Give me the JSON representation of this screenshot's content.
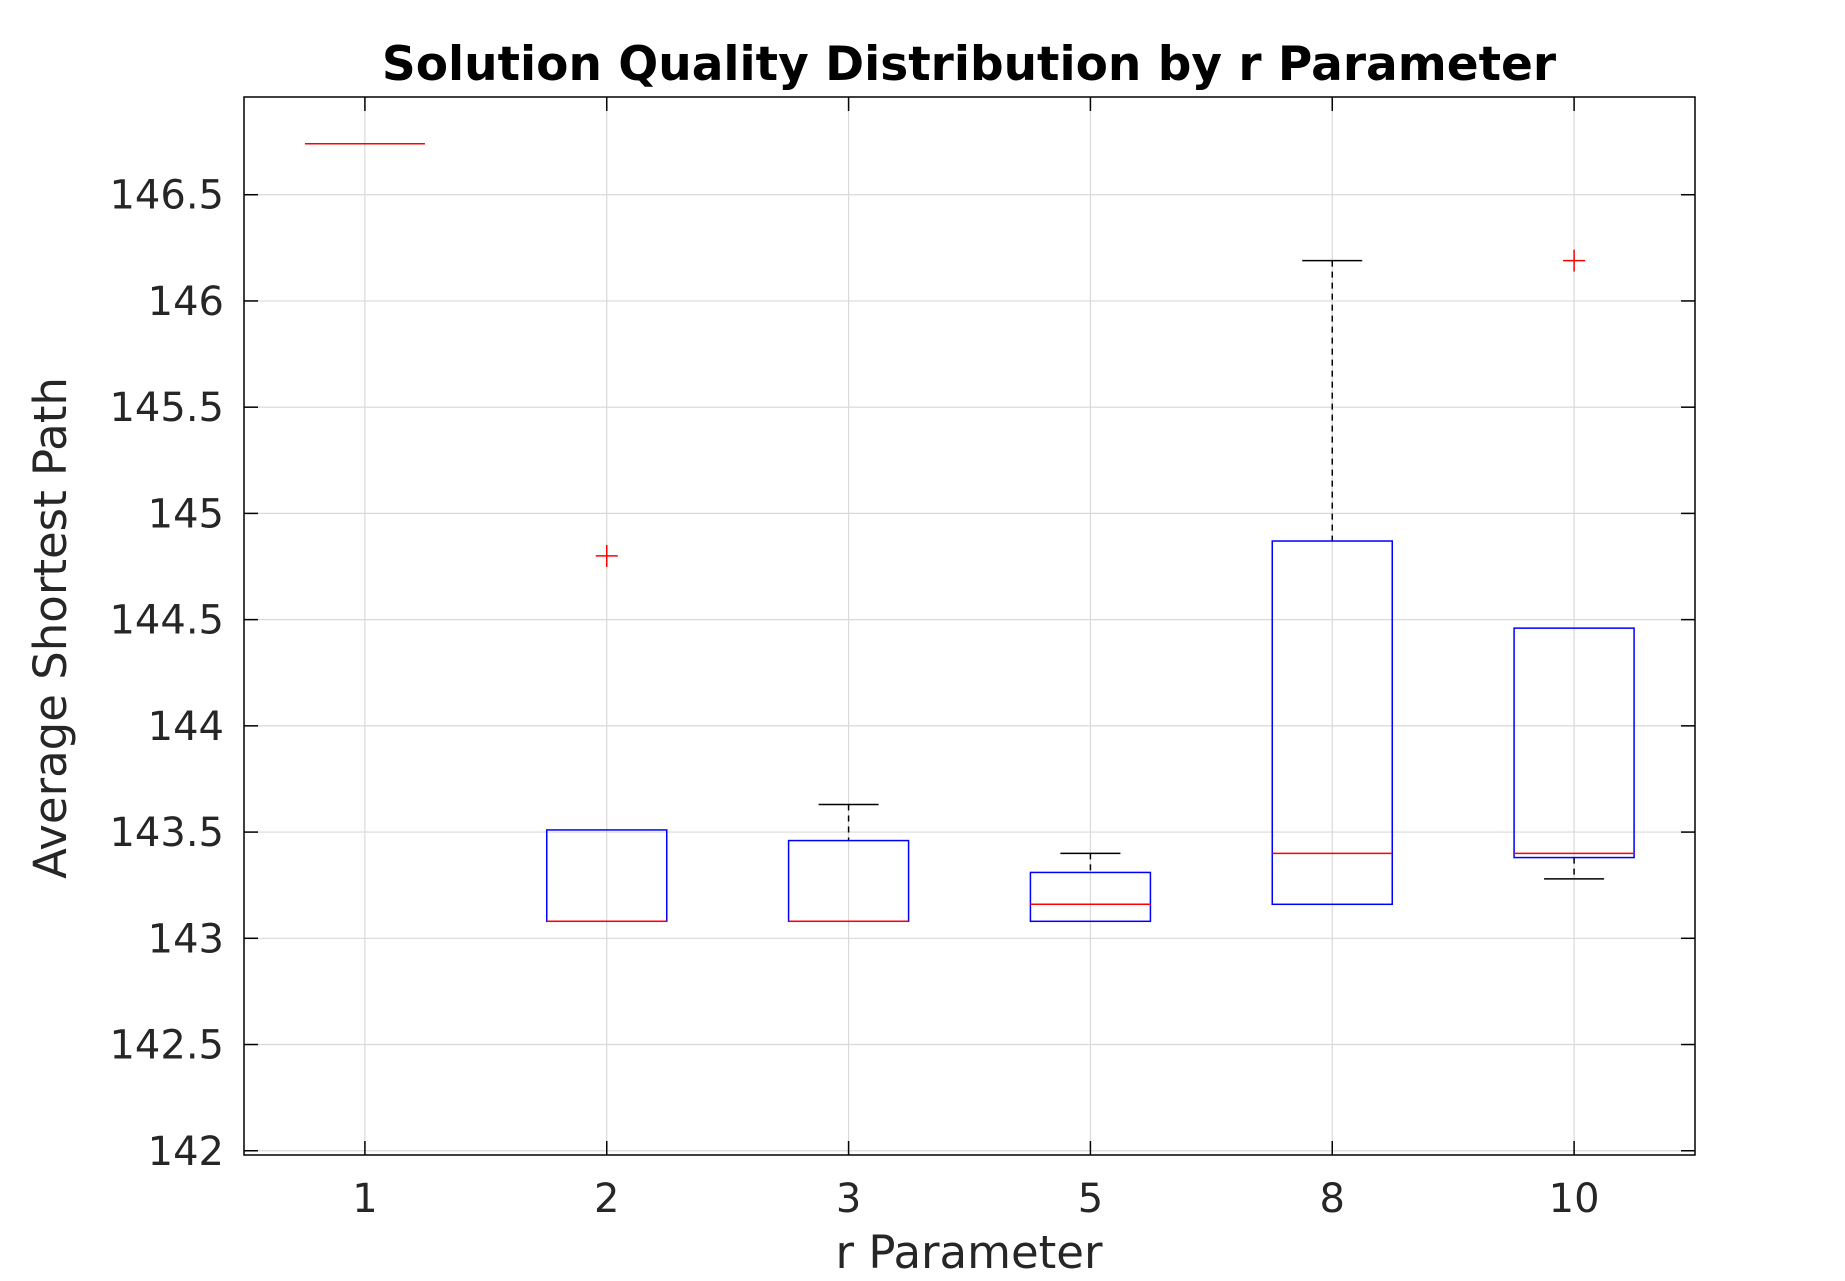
{
  "chart_data": {
    "type": "boxplot",
    "title": "Solution Quality Distribution by r Parameter",
    "xlabel": "r Parameter",
    "ylabel": "Average Shortest Path",
    "categories": [
      "1",
      "2",
      "3",
      "5",
      "8",
      "10"
    ],
    "ylim": [
      141.98,
      146.96
    ],
    "yticks": [
      142,
      142.5,
      143,
      143.5,
      144,
      144.5,
      145,
      145.5,
      146,
      146.5
    ],
    "ytick_labels": [
      "142",
      "142.5",
      "143",
      "143.5",
      "144",
      "144.5",
      "145",
      "145.5",
      "146",
      "146.5"
    ],
    "grid": true,
    "boxes": [
      {
        "category": "1",
        "q1": 146.74,
        "median": 146.74,
        "q3": 146.74,
        "whisker_low": 146.74,
        "whisker_high": 146.74,
        "outliers": []
      },
      {
        "category": "2",
        "q1": 143.08,
        "median": 143.08,
        "q3": 143.51,
        "whisker_low": 143.08,
        "whisker_high": 143.51,
        "outliers": [
          144.8
        ]
      },
      {
        "category": "3",
        "q1": 143.08,
        "median": 143.08,
        "q3": 143.46,
        "whisker_low": 143.08,
        "whisker_high": 143.63,
        "outliers": []
      },
      {
        "category": "5",
        "q1": 143.08,
        "median": 143.16,
        "q3": 143.31,
        "whisker_low": 143.08,
        "whisker_high": 143.4,
        "outliers": []
      },
      {
        "category": "8",
        "q1": 143.16,
        "median": 143.4,
        "q3": 144.87,
        "whisker_low": 143.16,
        "whisker_high": 146.19,
        "outliers": []
      },
      {
        "category": "10",
        "q1": 143.38,
        "median": 143.4,
        "q3": 144.46,
        "whisker_low": 143.28,
        "whisker_high": 144.46,
        "outliers": [
          146.19
        ]
      }
    ],
    "colors": {
      "box": "#0000ff",
      "median": "#ff0000",
      "whisker": "#000000",
      "outlier": "#ff0000",
      "grid": "#d9d9d9",
      "axis": "#000000",
      "text": "#262626"
    }
  }
}
